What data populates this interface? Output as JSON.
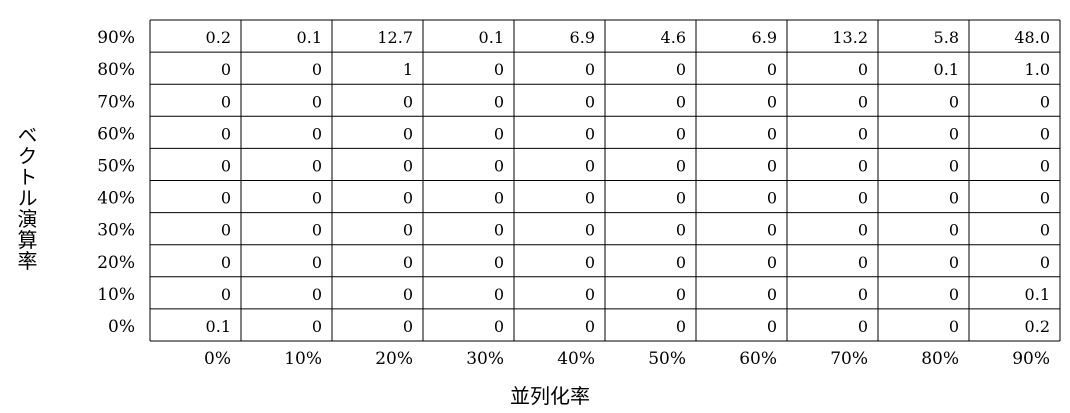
{
  "chart_data": {
    "type": "table",
    "xlabel": "並列化率",
    "ylabel": "ベクトル演算率",
    "x_labels": [
      "0%",
      "10%",
      "20%",
      "30%",
      "40%",
      "50%",
      "60%",
      "70%",
      "80%",
      "90%"
    ],
    "y_labels": [
      "90%",
      "80%",
      "70%",
      "60%",
      "50%",
      "40%",
      "30%",
      "20%",
      "10%",
      "0%"
    ],
    "rows": [
      [
        "0.2",
        "0.1",
        "12.7",
        "0.1",
        "6.9",
        "4.6",
        "6.9",
        "13.2",
        "5.8",
        "48.0"
      ],
      [
        "0",
        "0",
        "1",
        "0",
        "0",
        "0",
        "0",
        "0",
        "0.1",
        "1.0"
      ],
      [
        "0",
        "0",
        "0",
        "0",
        "0",
        "0",
        "0",
        "0",
        "0",
        "0"
      ],
      [
        "0",
        "0",
        "0",
        "0",
        "0",
        "0",
        "0",
        "0",
        "0",
        "0"
      ],
      [
        "0",
        "0",
        "0",
        "0",
        "0",
        "0",
        "0",
        "0",
        "0",
        "0"
      ],
      [
        "0",
        "0",
        "0",
        "0",
        "0",
        "0",
        "0",
        "0",
        "0",
        "0"
      ],
      [
        "0",
        "0",
        "0",
        "0",
        "0",
        "0",
        "0",
        "0",
        "0",
        "0"
      ],
      [
        "0",
        "0",
        "0",
        "0",
        "0",
        "0",
        "0",
        "0",
        "0",
        "0"
      ],
      [
        "0",
        "0",
        "0",
        "0",
        "0",
        "0",
        "0",
        "0",
        "0",
        "0.1"
      ],
      [
        "0.1",
        "0",
        "0",
        "0",
        "0",
        "0",
        "0",
        "0",
        "0",
        "0.2"
      ]
    ],
    "grid": true
  }
}
